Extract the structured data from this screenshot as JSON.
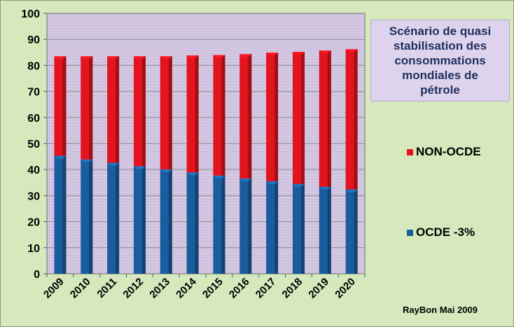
{
  "chart_data": {
    "type": "bar",
    "stacked": true,
    "title": "Scénario de quasi stabilisation des consommations mondiales de pétrole",
    "categories": [
      "2009",
      "2010",
      "2011",
      "2012",
      "2013",
      "2014",
      "2015",
      "2016",
      "2017",
      "2018",
      "2019",
      "2020"
    ],
    "series": [
      {
        "name": "OCDE -3%",
        "color": "#1a5d9e",
        "values": [
          45.3,
          43.9,
          42.6,
          41.3,
          40.1,
          38.9,
          37.7,
          36.6,
          35.5,
          34.5,
          33.4,
          32.4
        ]
      },
      {
        "name": "NON-OCDE",
        "color": "#e3141d",
        "values": [
          38.2,
          39.6,
          40.9,
          42.2,
          43.4,
          44.9,
          46.3,
          47.7,
          49.4,
          50.7,
          52.3,
          53.8
        ]
      }
    ],
    "ylim": [
      0,
      100
    ],
    "yticks": [
      0,
      10,
      20,
      30,
      40,
      50,
      60,
      70,
      80,
      90,
      100
    ],
    "grid": true,
    "legend_position": "right",
    "plot_background": "#d4c8e3",
    "credit": "RayBon Mai 2009"
  }
}
